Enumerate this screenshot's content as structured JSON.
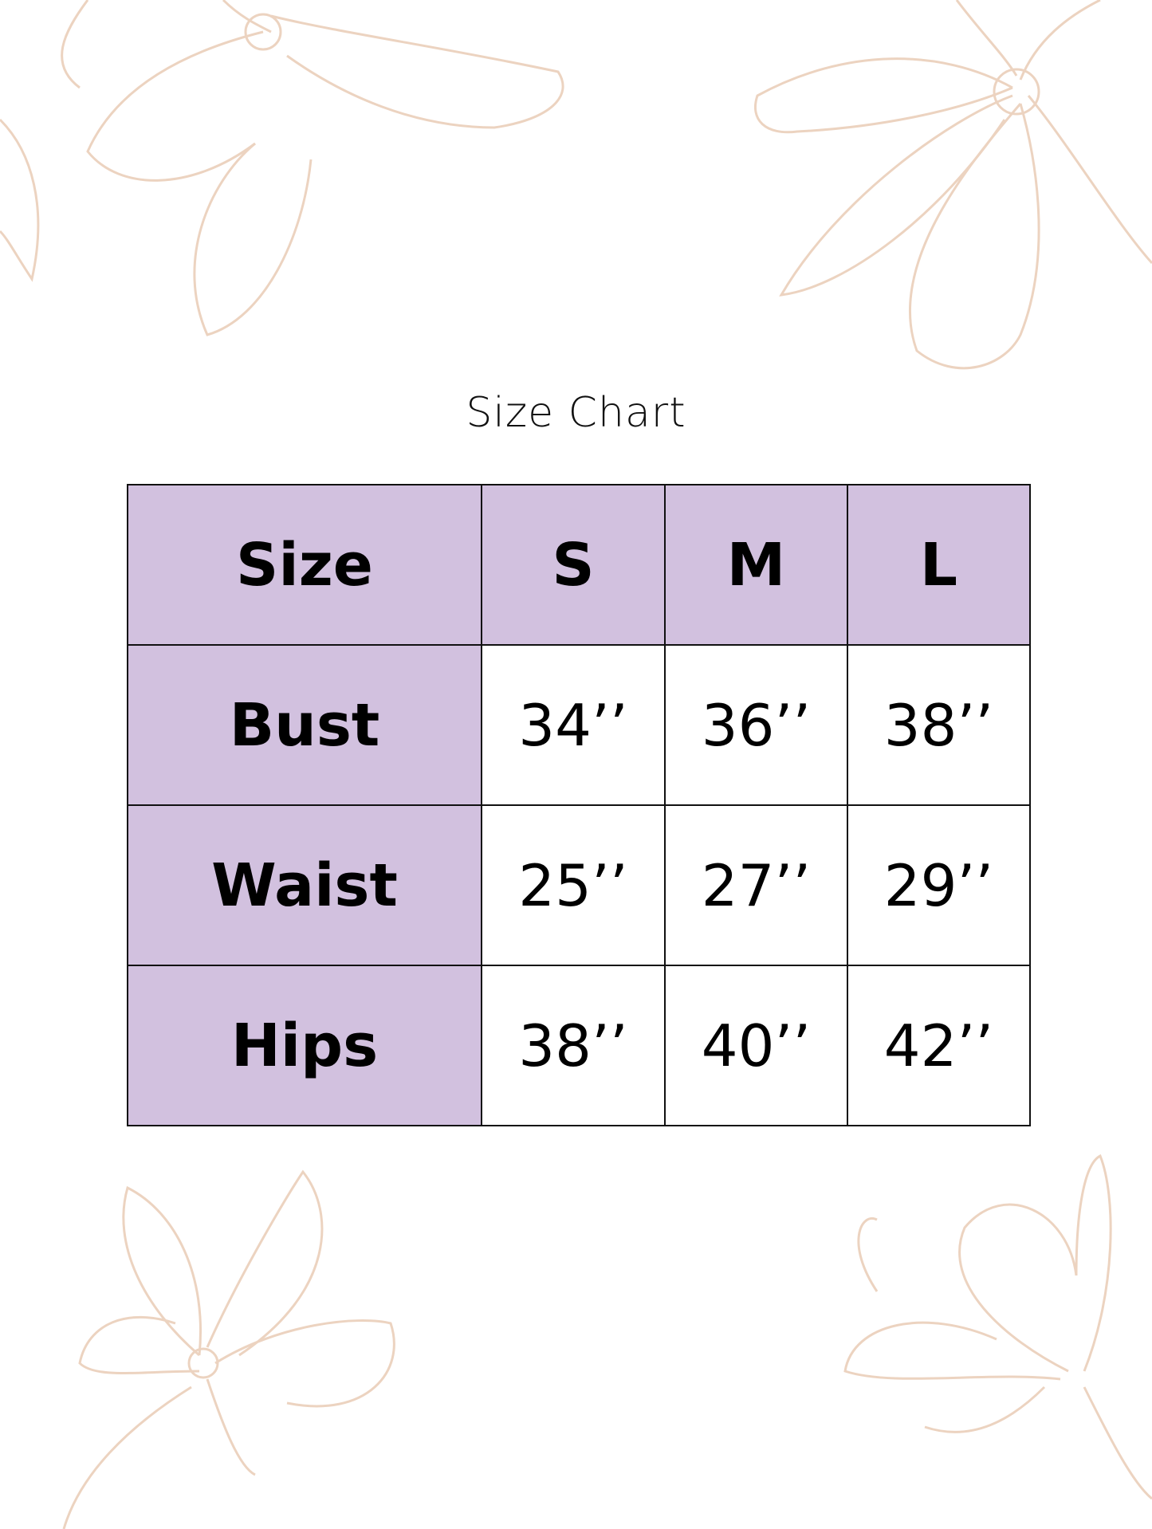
{
  "title": "Size Chart",
  "colors": {
    "header_fill": "#d2c1df",
    "border": "#111111",
    "floral_line": "#ecd3c0"
  },
  "decoration": "floral-line-art",
  "table": {
    "header": [
      "Size",
      "S",
      "M",
      "L"
    ],
    "rows": [
      {
        "label": "Bust",
        "values": [
          "34’’",
          "36’’",
          "38’’"
        ]
      },
      {
        "label": "Waist",
        "values": [
          "25’’",
          "27’’",
          "29’’"
        ]
      },
      {
        "label": "Hips",
        "values": [
          "38’’",
          "40’’",
          "42’’"
        ]
      }
    ]
  }
}
